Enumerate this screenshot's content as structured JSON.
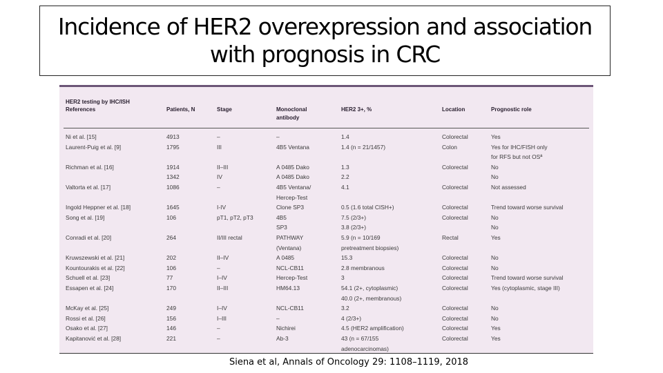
{
  "slide": {
    "title_line1": "Incidence of HER2 overexpression and association",
    "title_line2": "with prognosis in CRC",
    "citation": "Siena et al, Annals of Oncology 29: 1108–1119, 2018"
  },
  "table": {
    "section_heading": "HER2 testing by IHC/ISH",
    "headers": [
      "References",
      "Patients, N",
      "Stage",
      "Monoclonal antibody",
      "HER2 3+, %",
      "Location",
      "Prognostic role"
    ],
    "rows": [
      [
        "Ni et al. [15]",
        "4913",
        "–",
        "–",
        "1.4",
        "Colorectal",
        "Yes"
      ],
      [
        "Laurent-Puig et al. [9]",
        "1795",
        "III",
        "4B5 Ventana",
        "1.4 (n = 21/1457)",
        "Colon",
        "Yes for IHC/FISH only"
      ],
      [
        "",
        "",
        "",
        "",
        "",
        "",
        "   for RFS but not OSª"
      ],
      [
        "Richman et al. [16]",
        "1914",
        "II–III",
        "A 0485 Dako",
        "1.3",
        "Colorectal",
        "No"
      ],
      [
        "",
        "1342",
        "IV",
        "A 0485 Dako",
        "2.2",
        "",
        "No"
      ],
      [
        "Valtorta et al. [17]",
        "1086",
        "–",
        "4B5 Ventana/",
        "4.1",
        "Colorectal",
        "Not assessed"
      ],
      [
        "",
        "",
        "",
        "   Hercep-Test",
        "",
        "",
        ""
      ],
      [
        "Ingold Heppner et al. [18]",
        "1645",
        "I-IV",
        "Clone SP3",
        "0.5 (1.6 total CISH+)",
        "Colorectal",
        "Trend toward worse survival"
      ],
      [
        "Song et al. [19]",
        "106",
        "pT1, pT2, pT3",
        "4B5",
        "7.5 (2/3+)",
        "Colorectal",
        "No"
      ],
      [
        "",
        "",
        "",
        "SP3",
        "3.8 (2/3+)",
        "",
        "No"
      ],
      [
        "Conradi et al. [20]",
        "264",
        "II/III rectal",
        "PATHWAY",
        "5.9 (n = 10/169",
        "Rectal",
        "Yes"
      ],
      [
        "",
        "",
        "",
        "   (Ventana)",
        "   pretreatment biopsies)",
        "",
        ""
      ],
      [
        "Kruwszewski et al. [21]",
        "202",
        "II–IV",
        "A 0485",
        "15.3",
        "Colorectal",
        "No"
      ],
      [
        "Kountourakis et al. [22]",
        "106",
        "–",
        "NCL-CB11",
        "2.8 membranous",
        "Colorectal",
        "No"
      ],
      [
        "Schuell et al. [23]",
        "77",
        "I–IV",
        "Hercep-Test",
        "3",
        "Colorectal",
        "Trend toward worse survival"
      ],
      [
        "Essapen et al. [24]",
        "170",
        "II–III",
        "HM64.13",
        "54.1 (2+, cytoplasmic)",
        "Colorectal",
        "Yes (cytoplasmic, stage III)"
      ],
      [
        "",
        "",
        "",
        "",
        "40.0 (2+, membranous)",
        "",
        ""
      ],
      [
        "McKay et al. [25]",
        "249",
        "I–IV",
        "NCL-CB11",
        "3.2",
        "Colorectal",
        "No"
      ],
      [
        "Rossi et al. [26]",
        "156",
        "I–III",
        "–",
        "4 (2/3+)",
        "Colorectal",
        "No"
      ],
      [
        "Osako et al. [27]",
        "146",
        "–",
        "Nichirei",
        "4.5 (HER2 amplification)",
        "Colorectal",
        "Yes"
      ],
      [
        "Kapitanović et al. [28]",
        "221",
        "–",
        "Ab-3",
        "43 (n = 67/155",
        "Colorectal",
        "Yes"
      ],
      [
        "",
        "",
        "",
        "",
        "   adenocarcinomas)",
        "",
        ""
      ]
    ]
  }
}
